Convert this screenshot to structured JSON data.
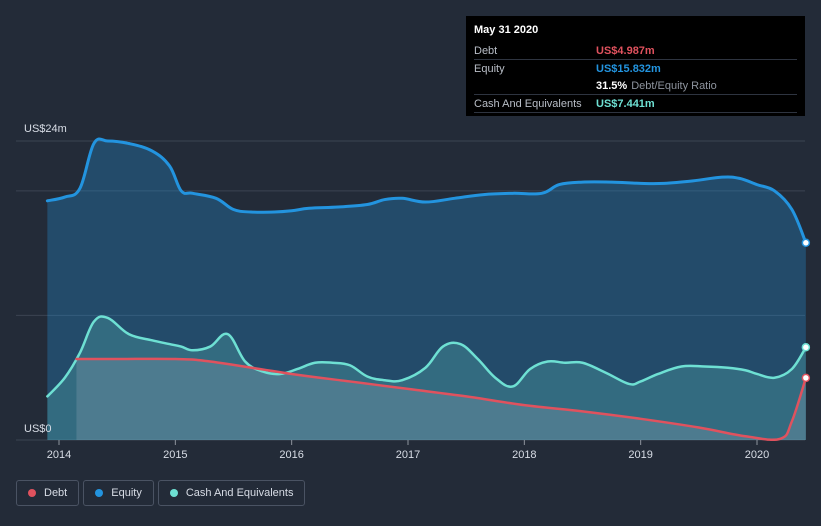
{
  "tooltip": {
    "date": "May 31 2020",
    "debt_label": "Debt",
    "debt_value": "US$4.987m",
    "equity_label": "Equity",
    "equity_value": "US$15.832m",
    "ratio_value": "31.5%",
    "ratio_label": "Debt/Equity Ratio",
    "cash_label": "Cash And Equivalents",
    "cash_value": "US$7.441m"
  },
  "legend": {
    "debt": "Debt",
    "equity": "Equity",
    "cash": "Cash And Equivalents"
  },
  "colors": {
    "background": "#232b38",
    "debt": "#e0525e",
    "equity": "#2394df",
    "cash": "#6ee0d3",
    "grid": "#3b4452"
  },
  "chart_data": {
    "type": "area",
    "title": "",
    "ylabel_top": "US$24m",
    "ylabel_bottom": "US$0",
    "ylim": [
      0,
      24
    ],
    "xlim": [
      2013.9,
      2020.42
    ],
    "x_ticks": [
      "2014",
      "2015",
      "2016",
      "2017",
      "2018",
      "2019",
      "2020"
    ],
    "series": [
      {
        "name": "Equity",
        "x": [
          2013.9,
          2014.05,
          2014.18,
          2014.3,
          2014.42,
          2014.6,
          2014.8,
          2014.95,
          2015.05,
          2015.15,
          2015.35,
          2015.5,
          2015.65,
          2015.85,
          2016.0,
          2016.15,
          2016.4,
          2016.65,
          2016.8,
          2016.95,
          2017.15,
          2017.4,
          2017.65,
          2017.9,
          2018.15,
          2018.3,
          2018.5,
          2018.75,
          2019.0,
          2019.2,
          2019.45,
          2019.7,
          2019.85,
          2020.0,
          2020.15,
          2020.3,
          2020.42
        ],
        "values": [
          19.2,
          19.5,
          20.2,
          23.8,
          24.0,
          23.8,
          23.2,
          22.0,
          20.0,
          19.8,
          19.4,
          18.5,
          18.3,
          18.3,
          18.4,
          18.6,
          18.7,
          18.9,
          19.3,
          19.4,
          19.1,
          19.4,
          19.7,
          19.8,
          19.8,
          20.5,
          20.7,
          20.7,
          20.6,
          20.6,
          20.8,
          21.1,
          21.0,
          20.5,
          20.0,
          18.5,
          15.832
        ]
      },
      {
        "name": "Cash And Equivalents",
        "x": [
          2013.9,
          2014.05,
          2014.18,
          2014.3,
          2014.42,
          2014.6,
          2014.8,
          2014.95,
          2015.05,
          2015.15,
          2015.3,
          2015.45,
          2015.6,
          2015.75,
          2015.9,
          2016.05,
          2016.2,
          2016.35,
          2016.5,
          2016.65,
          2016.8,
          2016.95,
          2017.15,
          2017.3,
          2017.45,
          2017.6,
          2017.75,
          2017.9,
          2018.05,
          2018.2,
          2018.35,
          2018.5,
          2018.7,
          2018.9,
          2019.0,
          2019.15,
          2019.35,
          2019.55,
          2019.75,
          2019.9,
          2020.0,
          2020.15,
          2020.3,
          2020.42
        ],
        "values": [
          3.5,
          5.0,
          7.0,
          9.5,
          9.8,
          8.5,
          8.0,
          7.7,
          7.5,
          7.2,
          7.5,
          8.5,
          6.3,
          5.5,
          5.3,
          5.7,
          6.2,
          6.2,
          6.0,
          5.1,
          4.8,
          4.8,
          5.8,
          7.5,
          7.7,
          6.5,
          5.0,
          4.3,
          5.7,
          6.3,
          6.2,
          6.2,
          5.4,
          4.5,
          4.7,
          5.3,
          5.9,
          5.9,
          5.8,
          5.6,
          5.3,
          5.0,
          5.7,
          7.441
        ]
      },
      {
        "name": "Debt",
        "x": [
          2014.15,
          2014.5,
          2015.0,
          2015.3,
          2016.0,
          2016.5,
          2017.0,
          2017.5,
          2018.0,
          2018.5,
          2019.0,
          2019.5,
          2019.9,
          2020.2,
          2020.3,
          2020.42
        ],
        "values": [
          6.5,
          6.5,
          6.5,
          6.3,
          5.3,
          4.7,
          4.1,
          3.5,
          2.8,
          2.3,
          1.7,
          1.0,
          0.3,
          0.1,
          1.5,
          4.987
        ]
      }
    ]
  }
}
